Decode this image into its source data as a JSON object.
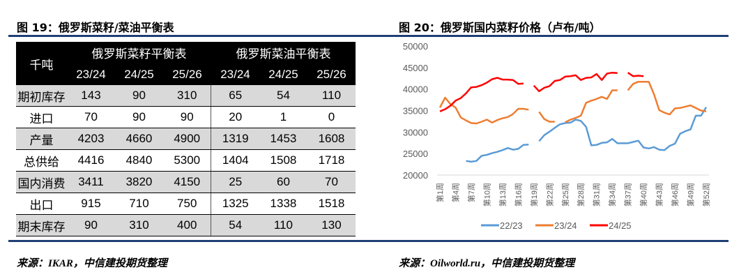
{
  "left": {
    "title": "图 19：俄罗斯菜籽/菜油平衡表",
    "source": "来源：IKAR，中信建投期货整理",
    "table": {
      "unit": "千吨",
      "groups": [
        "俄罗斯菜籽平衡表",
        "俄罗斯菜油平衡表"
      ],
      "seasons": [
        "23/24",
        "24/25",
        "25/26",
        "23/24",
        "24/25",
        "25/26"
      ],
      "rows": [
        {
          "label": "期初库存",
          "values": [
            "143",
            "90",
            "310",
            "65",
            "54",
            "110"
          ]
        },
        {
          "label": "进口",
          "values": [
            "70",
            "90",
            "90",
            "20",
            "1",
            "0"
          ]
        },
        {
          "label": "产量",
          "values": [
            "4203",
            "4660",
            "4900",
            "1319",
            "1453",
            "1608"
          ]
        },
        {
          "label": "总供给",
          "values": [
            "4416",
            "4840",
            "5300",
            "1404",
            "1508",
            "1718"
          ]
        },
        {
          "label": "国内消费",
          "values": [
            "3411",
            "3820",
            "4150",
            "25",
            "60",
            "70"
          ]
        },
        {
          "label": "出口",
          "values": [
            "915",
            "710",
            "750",
            "1325",
            "1338",
            "1518"
          ]
        },
        {
          "label": "期末库存",
          "values": [
            "90",
            "310",
            "400",
            "54",
            "110",
            "130"
          ]
        }
      ]
    }
  },
  "right": {
    "title": "图 20：俄罗斯国内菜籽价格（卢布/吨）",
    "source": "来源：Oilworld.ru，中信建投期货整理"
  },
  "chart_data": {
    "type": "line",
    "title": "",
    "xlabel": "",
    "ylabel": "",
    "ylim": [
      20000,
      50000
    ],
    "yticks": [
      20000,
      25000,
      30000,
      35000,
      40000,
      45000,
      50000
    ],
    "xtick_labels": [
      "第1周",
      "第4周",
      "第7周",
      "第10周",
      "第13周",
      "第16周",
      "第19周",
      "第22周",
      "第25周",
      "第28周",
      "第31周",
      "第34周",
      "第37周",
      "第40周",
      "第43周",
      "第46周",
      "第49周",
      "第52周"
    ],
    "x_weeks": [
      1,
      2,
      3,
      4,
      5,
      6,
      7,
      8,
      9,
      10,
      11,
      12,
      13,
      14,
      15,
      16,
      17,
      18,
      19,
      20,
      21,
      22,
      23,
      24,
      25,
      26,
      27,
      28,
      29,
      30,
      31,
      32,
      33,
      34,
      35,
      36,
      37,
      38,
      39,
      40,
      41,
      42,
      43,
      44,
      45,
      46,
      47,
      48,
      49,
      50,
      51,
      52
    ],
    "legend": "bottom",
    "grid": false,
    "series": [
      {
        "name": "22/23",
        "color": "#5b9bd5",
        "values": [
          null,
          null,
          null,
          null,
          null,
          23300,
          23100,
          23300,
          24500,
          24700,
          25100,
          25400,
          25800,
          26300,
          25900,
          26100,
          27000,
          27100,
          null,
          27900,
          29300,
          30100,
          31000,
          31800,
          32100,
          32200,
          32900,
          32600,
          31200,
          26900,
          27000,
          27500,
          27600,
          28400,
          27400,
          27400,
          27400,
          27700,
          28000,
          26400,
          26200,
          26500,
          25900,
          25800,
          26800,
          27300,
          29600,
          30200,
          30600,
          33800,
          33800,
          35800
        ]
      },
      {
        "name": "23/24",
        "color": "#ed7d31",
        "values": [
          35700,
          38000,
          36500,
          35700,
          33400,
          32700,
          32100,
          32000,
          32400,
          32900,
          32200,
          32800,
          33200,
          33500,
          34200,
          35400,
          35400,
          35200,
          null,
          34700,
          33000,
          32400,
          32400,
          null,
          32300,
          32900,
          33300,
          33800,
          36800,
          37300,
          37700,
          38200,
          37700,
          39700,
          39700,
          null,
          39700,
          41200,
          41700,
          41700,
          41700,
          38800,
          35100,
          34500,
          34100,
          35500,
          35600,
          35900,
          36200,
          35600,
          35000,
          34800
        ]
      },
      {
        "name": "24/25",
        "color": "#ff0000",
        "values": [
          34800,
          35300,
          36100,
          37300,
          37900,
          39000,
          40400,
          40500,
          40900,
          41500,
          42300,
          42600,
          42200,
          42200,
          42100,
          41200,
          41300,
          null,
          40800,
          39500,
          40300,
          40700,
          41900,
          42100,
          42900,
          43000,
          43200,
          42100,
          42600,
          42700,
          43500,
          42100,
          43600,
          43800,
          43700,
          null,
          43800,
          43000,
          43100,
          43000,
          null,
          null,
          null,
          null,
          null,
          null,
          null,
          null,
          null,
          null,
          null,
          null
        ]
      }
    ]
  }
}
